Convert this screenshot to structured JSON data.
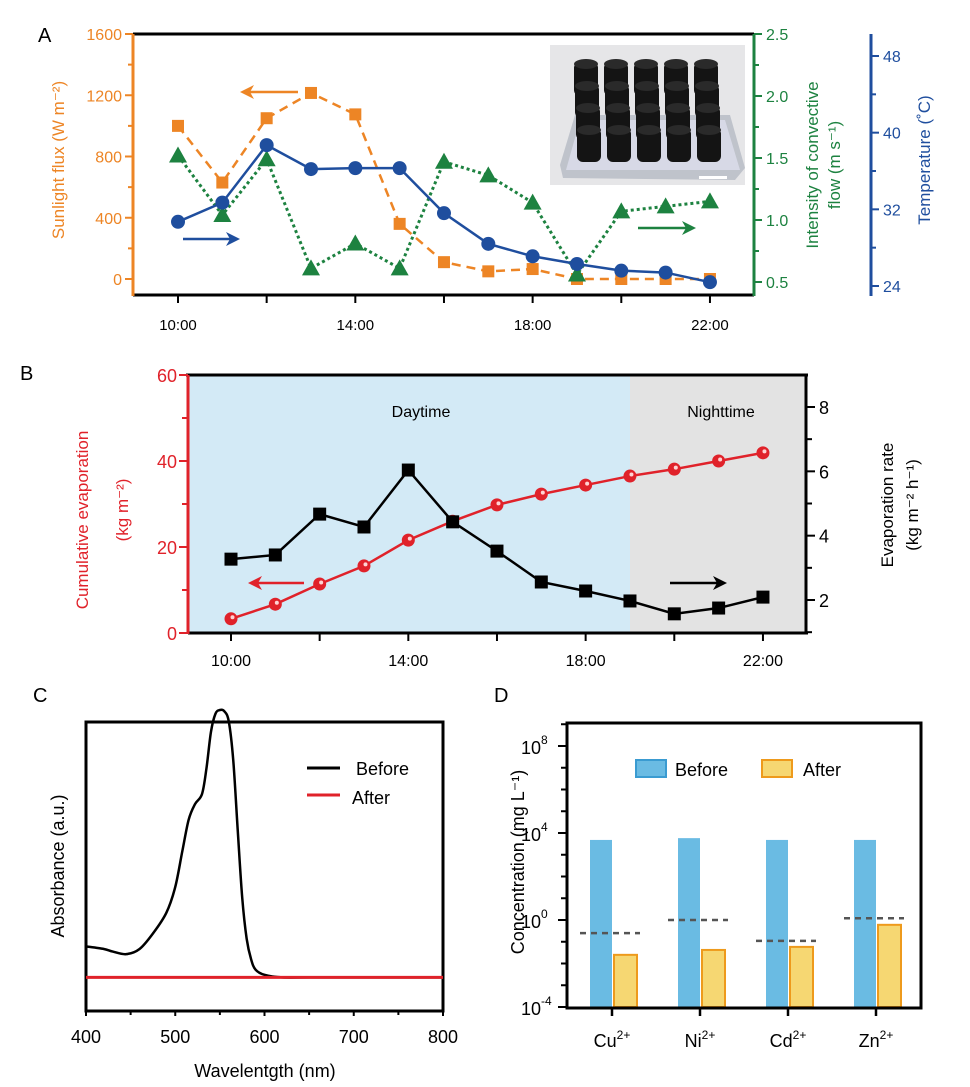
{
  "figure": {
    "panel_labels": [
      "A",
      "B",
      "C",
      "D"
    ]
  },
  "colors": {
    "orange": "#ED8525",
    "green": "#1D8240",
    "blue": "#1F4E9E",
    "red": "#E0222A",
    "black": "#000000",
    "day_bg": "#D3EAF6",
    "night_bg": "#E3E3E3",
    "bar_before": "#6ABBE3",
    "bar_after_fill": "#F6D772",
    "bar_after_stroke": "#EE9A1C",
    "limit_dash": "#555555"
  },
  "chart_data": [
    {
      "id": "A",
      "type": "line",
      "x": [
        "10:00",
        "11:00",
        "12:00",
        "13:00",
        "14:00",
        "15:00",
        "16:00",
        "17:00",
        "18:00",
        "19:00",
        "20:00",
        "21:00",
        "22:00"
      ],
      "xticks": [
        "10:00",
        "14:00",
        "18:00",
        "22:00"
      ],
      "series": [
        {
          "name": "Sunlight flux",
          "axis": "left",
          "marker": "square",
          "line": "dashed",
          "values": [
            1000,
            630,
            1050,
            1215,
            1075,
            360,
            110,
            50,
            65,
            0,
            0,
            0,
            0
          ]
        },
        {
          "name": "Intensity of convective flow",
          "axis": "right1",
          "marker": "triangle",
          "line": "dotted",
          "values": [
            1.52,
            1.04,
            1.49,
            0.61,
            0.81,
            0.61,
            1.47,
            1.36,
            1.14,
            0.56,
            1.07,
            1.11,
            1.15
          ]
        },
        {
          "name": "Temperature",
          "axis": "right2",
          "marker": "circle",
          "line": "solid",
          "values": [
            30.7,
            32.7,
            38.7,
            36.2,
            36.3,
            36.3,
            31.6,
            28.4,
            27.1,
            26.3,
            25.6,
            25.4,
            24.4
          ]
        }
      ],
      "left_axis": {
        "label": "Sunlight flux (W m⁻²)",
        "ylim": [
          -100,
          1600
        ],
        "ticks": [
          "0",
          "400",
          "800",
          "1200",
          "1600"
        ]
      },
      "right_axis_1": {
        "label_line1": "Intensity of convective",
        "label_line2": "flow (m s⁻¹)",
        "ylim": [
          0.43,
          2.5
        ],
        "ticks": [
          "0.5",
          "1.0",
          "1.5",
          "2.0",
          "2.5"
        ]
      },
      "right_axis_2": {
        "label": "Temperature (˚C)",
        "ylim": [
          23,
          50
        ],
        "ticks": [
          "24",
          "32",
          "40",
          "48"
        ]
      },
      "inset": "photo-of-evaporator-array",
      "grid": false
    },
    {
      "id": "B",
      "type": "line",
      "x": [
        "10:00",
        "11:00",
        "12:00",
        "13:00",
        "14:00",
        "15:00",
        "16:00",
        "17:00",
        "18:00",
        "19:00",
        "20:00",
        "21:00",
        "22:00"
      ],
      "xticks": [
        "10:00",
        "14:00",
        "18:00",
        "22:00"
      ],
      "series": [
        {
          "name": "Cumulative evaporation",
          "axis": "left",
          "marker": "circle",
          "values": [
            3.3,
            6.7,
            11.4,
            15.6,
            21.6,
            26.0,
            29.8,
            32.3,
            34.4,
            36.5,
            38.1,
            40.0,
            41.9
          ]
        },
        {
          "name": "Evaporation rate",
          "axis": "right",
          "marker": "square",
          "values": [
            3.27,
            3.4,
            4.67,
            4.27,
            6.04,
            4.43,
            3.52,
            2.56,
            2.28,
            1.97,
            1.57,
            1.75,
            2.09
          ]
        }
      ],
      "left_axis": {
        "label_line1": "Cumulative evaporation",
        "label_line2": "(kg m⁻²)",
        "ylim": [
          0,
          60
        ],
        "ticks": [
          "0",
          "20",
          "40",
          "60"
        ]
      },
      "right_axis": {
        "label_line1": "Evaporation rate",
        "label_line2": "(kg m⁻² h⁻¹)",
        "ylim": [
          1,
          9
        ],
        "ticks": [
          "2",
          "4",
          "6",
          "8"
        ]
      },
      "regions": [
        {
          "label": "Daytime",
          "from": "09:00",
          "to": "19:00"
        },
        {
          "label": "Nighttime",
          "from": "19:00",
          "to": "23:00"
        }
      ],
      "grid": false
    },
    {
      "id": "C",
      "type": "line",
      "title": "",
      "xlabel": "Wavelentgth (nm)",
      "ylabel": "Absorbance (a.u.)",
      "xlim": [
        400,
        800
      ],
      "xticks": [
        "400",
        "500",
        "600",
        "700",
        "800"
      ],
      "ylim": [
        0,
        1.1
      ],
      "legend": [
        "Before",
        "After"
      ],
      "legend_position": "top-right",
      "series": [
        {
          "name": "Before",
          "x": [
            400,
            420,
            430,
            445,
            460,
            475,
            490,
            500,
            508,
            515,
            522,
            530,
            535,
            540,
            545,
            550,
            555,
            560,
            565,
            570,
            575,
            580,
            585,
            590,
            600,
            620,
            650,
            700,
            800
          ],
          "y": [
            0.13,
            0.12,
            0.11,
            0.1,
            0.12,
            0.18,
            0.26,
            0.36,
            0.5,
            0.62,
            0.68,
            0.72,
            0.82,
            0.96,
            1.03,
            1.045,
            1.04,
            1.0,
            0.85,
            0.58,
            0.32,
            0.16,
            0.08,
            0.04,
            0.02,
            0.01,
            0.01,
            0.01,
            0.01
          ]
        },
        {
          "name": "After",
          "x": [
            400,
            800
          ],
          "y": [
            0.01,
            0.01
          ]
        }
      ]
    },
    {
      "id": "D",
      "type": "bar",
      "categories": [
        "Cu",
        "Ni",
        "Cd",
        "Zn"
      ],
      "category_superscript": "2+",
      "ylabel": "Concentration (mg L⁻¹)",
      "yscale": "log10",
      "ylim": [
        -4,
        9
      ],
      "ytick_base": "10",
      "ytick_exponents": [
        "8",
        "4",
        "0",
        "-4"
      ],
      "legend_position": "top",
      "series": [
        {
          "name": "Before",
          "values": [
            4800,
            5800,
            4800,
            4800
          ]
        },
        {
          "name": "After",
          "values": [
            0.025,
            0.042,
            0.058,
            0.6
          ]
        }
      ],
      "limit_lines": [
        0.25,
        1.0,
        0.11,
        1.2
      ]
    }
  ],
  "panelA_arrows": [
    "left-arrow-orange",
    "right-arrow-blue",
    "right-arrow-green"
  ],
  "panelB_arrows": [
    "left-arrow-red",
    "right-arrow-black"
  ]
}
